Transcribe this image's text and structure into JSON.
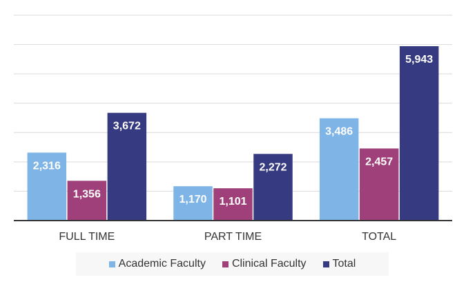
{
  "chart_data": {
    "type": "bar",
    "categories": [
      "FULL TIME",
      "PART TIME",
      "TOTAL"
    ],
    "series": [
      {
        "name": "Academic Faculty",
        "values": [
          2316,
          1170,
          3486
        ],
        "labels": [
          "2,316",
          "1,170",
          "3,486"
        ],
        "color": "#7fb5e6"
      },
      {
        "name": "Clinical Faculty",
        "values": [
          1356,
          1101,
          2457
        ],
        "labels": [
          "1,356",
          "1,101",
          "2,457"
        ],
        "color": "#a0407a"
      },
      {
        "name": "Total",
        "values": [
          3672,
          2272,
          5943
        ],
        "labels": [
          "3,672",
          "2,272",
          "5,943"
        ],
        "color": "#363a80"
      }
    ],
    "ylim": [
      0,
      7000
    ],
    "grid": true,
    "legend": "bottom"
  }
}
